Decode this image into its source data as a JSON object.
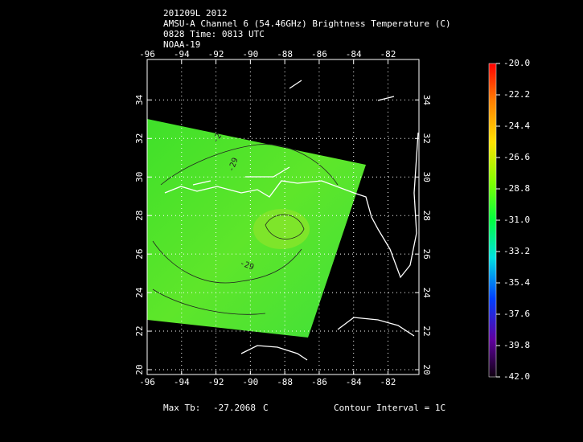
{
  "header": {
    "lines": [
      "201209L 2012",
      "AMSU-A Channel 6 (54.46GHz) Brightness Temperature (C)",
      "0828 Time: 0813 UTC",
      "NOAA-19"
    ]
  },
  "map": {
    "xlim": [
      -96,
      -80.2
    ],
    "ylim": [
      19.75,
      36.1
    ],
    "xticks": [
      -96,
      -94,
      -92,
      -90,
      -88,
      -86,
      -84,
      -82
    ],
    "yticks": [
      20,
      22,
      24,
      26,
      28,
      30,
      32,
      34
    ],
    "contour_labels": [
      "-29",
      "-2",
      "-29"
    ]
  },
  "colorbar": {
    "range": [
      -20,
      -42
    ],
    "ticks": [
      {
        "value": -20,
        "label": "-20.0"
      },
      {
        "value": -22.2,
        "label": "-22.2"
      },
      {
        "value": -24.4,
        "label": "-24.4"
      },
      {
        "value": -26.6,
        "label": "-26.6"
      },
      {
        "value": -28.8,
        "label": "-28.8"
      },
      {
        "value": -31,
        "label": "-31.0"
      },
      {
        "value": -33.2,
        "label": "-33.2"
      },
      {
        "value": -35.4,
        "label": "-35.4"
      },
      {
        "value": -37.6,
        "label": "-37.6"
      },
      {
        "value": -39.8,
        "label": "-39.8"
      },
      {
        "value": -42,
        "label": "-42.0"
      }
    ]
  },
  "footer": {
    "max_label": "Max Tb:",
    "max_value": -27.2068,
    "unit": "C",
    "contour_interval": "Contour Interval = 1C"
  }
}
